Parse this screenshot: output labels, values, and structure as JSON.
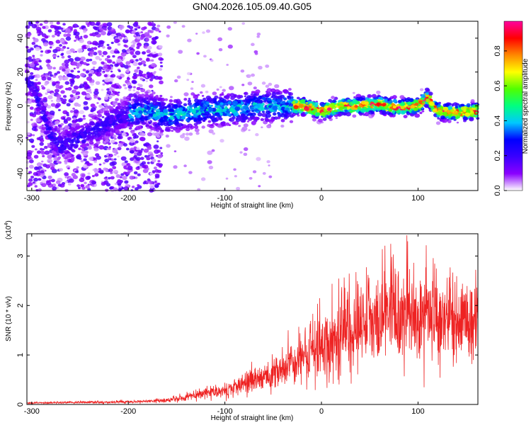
{
  "title": "GN04.2026.105.09.40.G05",
  "chart_data": [
    {
      "type": "heatmap",
      "xlabel": "Height of straight line (km)",
      "ylabel": "Frequency (Hz)",
      "xlim": [
        -305,
        162
      ],
      "ylim": [
        -50,
        50
      ],
      "xticks": [
        -300,
        -200,
        -100,
        0,
        100
      ],
      "yticks": [
        -40,
        -20,
        0,
        20,
        40
      ],
      "colorbar": {
        "label": "Normalized spectral amplitude",
        "range": [
          0,
          0.97
        ],
        "ticks": [
          0,
          0.2,
          0.4,
          0.6,
          0.8
        ],
        "colors": [
          "#ffffff",
          "#8a00ff",
          "#3a00ff",
          "#0000ff",
          "#00c8ff",
          "#00ff80",
          "#50ff00",
          "#ffff00",
          "#ff8800",
          "#ff0000",
          "#ff00a0"
        ]
      },
      "ridge": {
        "x": [
          -300,
          -295,
          -290,
          -285,
          -280,
          -270,
          -200,
          -180,
          -160,
          -140,
          -120,
          -100,
          -80,
          -60,
          -40,
          -20,
          0,
          20,
          40,
          60,
          80,
          100,
          110,
          120,
          140,
          160
        ],
        "y": [
          14,
          6,
          -2,
          -10,
          -18,
          -24,
          -4,
          -3,
          -6,
          -4,
          -2,
          -2,
          -1,
          0,
          0,
          0,
          -3,
          0,
          0,
          1,
          -1,
          0,
          5,
          -3,
          -4,
          -3
        ]
      }
    },
    {
      "type": "line",
      "xlabel": "Height of straight line (km)",
      "ylabel": "SNR (10 * v/v)",
      "y_multiplier": "(x10",
      "y_multiplier_exp": "4",
      "y_multiplier_close": ")",
      "xlim": [
        -305,
        162
      ],
      "ylim": [
        0,
        3.45
      ],
      "xticks": [
        -300,
        -200,
        -100,
        0,
        100
      ],
      "yticks": [
        0,
        1,
        2,
        3
      ],
      "color": "#ee2222",
      "envelope": {
        "x": [
          -305,
          -260,
          -200,
          -160,
          -140,
          -120,
          -100,
          -80,
          -60,
          -40,
          -20,
          0,
          20,
          40,
          60,
          80,
          100,
          120,
          140,
          160
        ],
        "y": [
          0.03,
          0.04,
          0.05,
          0.08,
          0.15,
          0.22,
          0.3,
          0.4,
          0.55,
          0.7,
          0.95,
          1.2,
          1.45,
          1.65,
          1.8,
          1.85,
          1.8,
          1.75,
          1.7,
          1.65
        ]
      }
    }
  ]
}
